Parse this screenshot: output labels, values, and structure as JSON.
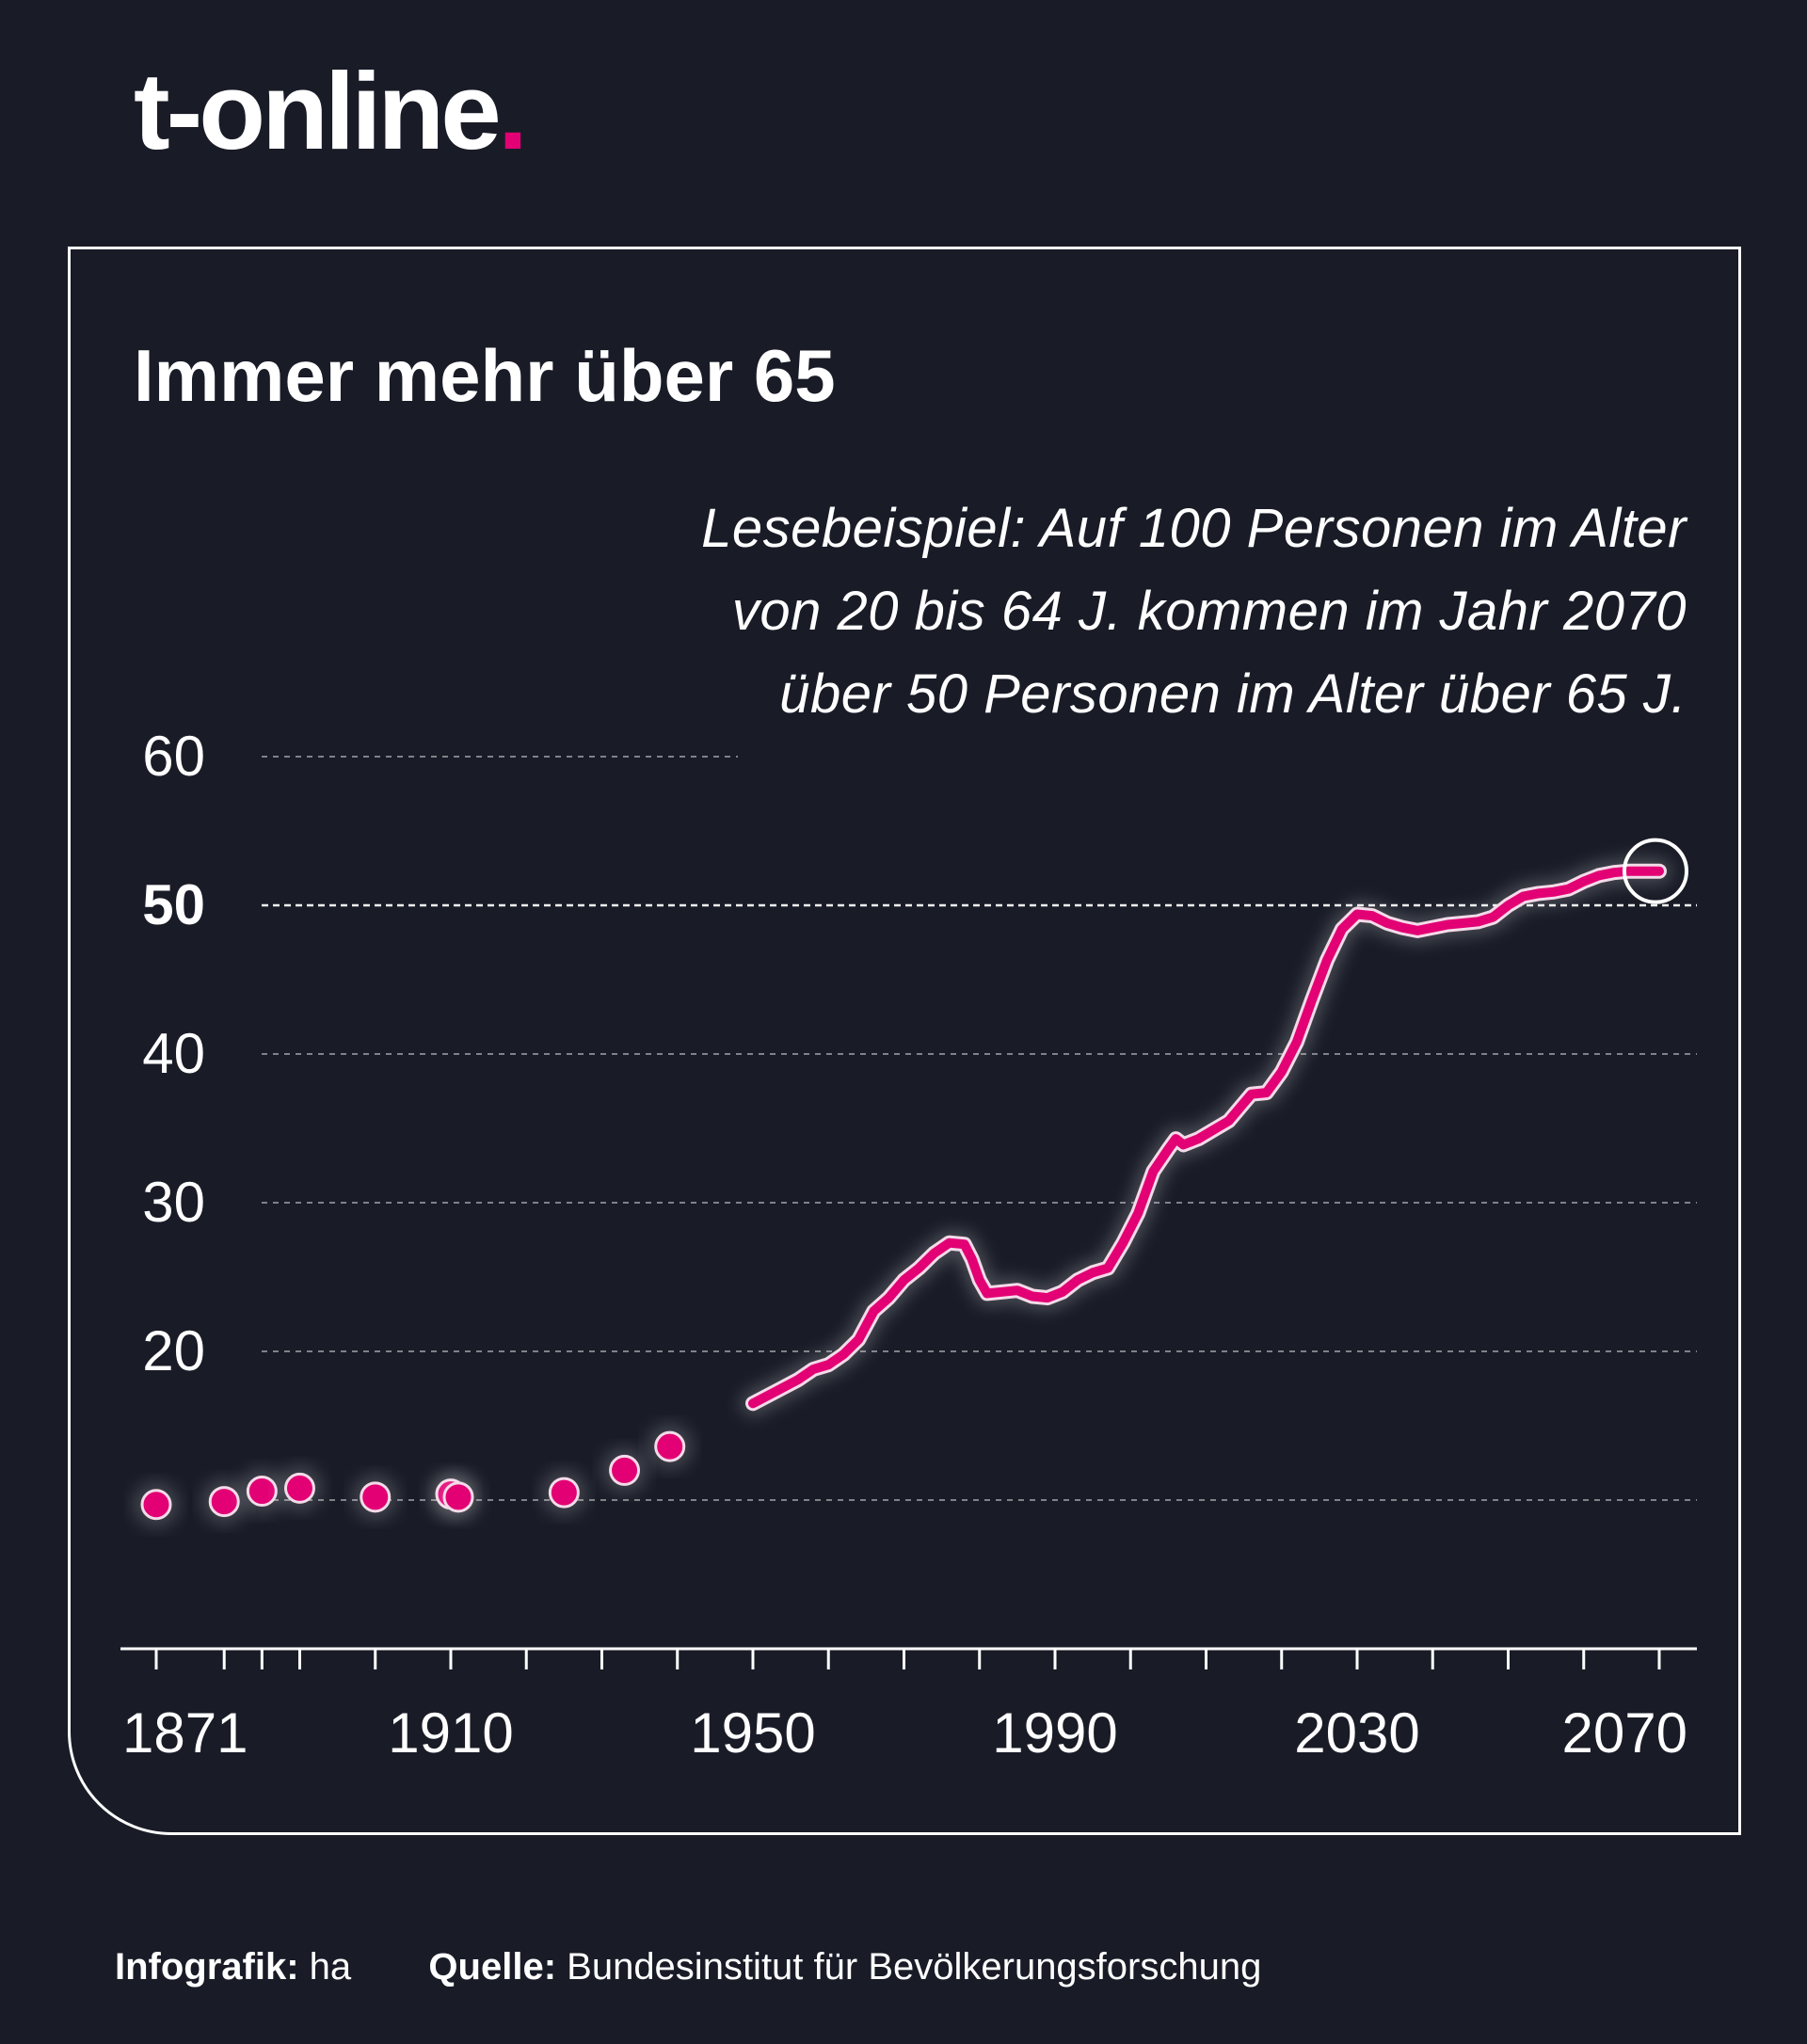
{
  "brand": {
    "name": "t-online",
    "dot": ".",
    "accent": "#e20074"
  },
  "chart_data": {
    "type": "line",
    "title": "Immer mehr über 65",
    "annotation": [
      "Lesebeispiel: Auf 100 Personen im Alter",
      "von 20 bis 64 J. kommen im Jahr 2070",
      "über 50 Personen im Alter über 65 J."
    ],
    "ylim": [
      0,
      60
    ],
    "y_ticks": [
      {
        "value": 60,
        "label": "60",
        "bold": false
      },
      {
        "value": 50,
        "label": "50",
        "bold": true
      },
      {
        "value": 40,
        "label": "40",
        "bold": false
      },
      {
        "value": 30,
        "label": "30",
        "bold": false
      },
      {
        "value": 20,
        "label": "20",
        "bold": false
      }
    ],
    "extra_gridline": 10,
    "xlim": [
      1871,
      2070
    ],
    "x_ticks": [
      1871,
      1880,
      1885,
      1890,
      1900,
      1910,
      1920,
      1930,
      1940,
      1950,
      1960,
      1970,
      1980,
      1990,
      2000,
      2010,
      2020,
      2030,
      2040,
      2050,
      2060,
      2070
    ],
    "x_labels": [
      {
        "value": 1871,
        "label": "1871"
      },
      {
        "value": 1910,
        "label": "1910"
      },
      {
        "value": 1950,
        "label": "1950"
      },
      {
        "value": 1990,
        "label": "1990"
      },
      {
        "value": 2030,
        "label": "2030"
      },
      {
        "value": 2070,
        "label": "2070"
      }
    ],
    "points": [
      {
        "x": 1871,
        "y": 9.7
      },
      {
        "x": 1880,
        "y": 9.9
      },
      {
        "x": 1885,
        "y": 10.6
      },
      {
        "x": 1890,
        "y": 10.8
      },
      {
        "x": 1900,
        "y": 10.2
      },
      {
        "x": 1910,
        "y": 10.4
      },
      {
        "x": 1911,
        "y": 10.2
      },
      {
        "x": 1925,
        "y": 10.5
      },
      {
        "x": 1933,
        "y": 12.0
      },
      {
        "x": 1939,
        "y": 13.6
      }
    ],
    "line": [
      {
        "x": 1950,
        "y": 16.5
      },
      {
        "x": 1953,
        "y": 17.3
      },
      {
        "x": 1956,
        "y": 18.1
      },
      {
        "x": 1958,
        "y": 18.8
      },
      {
        "x": 1960,
        "y": 19.1
      },
      {
        "x": 1962,
        "y": 19.8
      },
      {
        "x": 1964,
        "y": 20.8
      },
      {
        "x": 1966,
        "y": 22.7
      },
      {
        "x": 1968,
        "y": 23.6
      },
      {
        "x": 1970,
        "y": 24.8
      },
      {
        "x": 1972,
        "y": 25.6
      },
      {
        "x": 1974,
        "y": 26.6
      },
      {
        "x": 1976,
        "y": 27.3
      },
      {
        "x": 1978,
        "y": 27.2
      },
      {
        "x": 1979,
        "y": 26.2
      },
      {
        "x": 1980,
        "y": 24.8
      },
      {
        "x": 1981,
        "y": 23.9
      },
      {
        "x": 1983,
        "y": 24.0
      },
      {
        "x": 1985,
        "y": 24.1
      },
      {
        "x": 1987,
        "y": 23.7
      },
      {
        "x": 1989,
        "y": 23.6
      },
      {
        "x": 1991,
        "y": 24.0
      },
      {
        "x": 1993,
        "y": 24.8
      },
      {
        "x": 1995,
        "y": 25.3
      },
      {
        "x": 1997,
        "y": 25.6
      },
      {
        "x": 1999,
        "y": 27.3
      },
      {
        "x": 2001,
        "y": 29.3
      },
      {
        "x": 2003,
        "y": 32.1
      },
      {
        "x": 2005,
        "y": 33.6
      },
      {
        "x": 2006,
        "y": 34.3
      },
      {
        "x": 2007,
        "y": 33.9
      },
      {
        "x": 2009,
        "y": 34.3
      },
      {
        "x": 2011,
        "y": 34.9
      },
      {
        "x": 2013,
        "y": 35.5
      },
      {
        "x": 2015,
        "y": 36.7
      },
      {
        "x": 2016,
        "y": 37.3
      },
      {
        "x": 2018,
        "y": 37.4
      },
      {
        "x": 2020,
        "y": 38.8
      },
      {
        "x": 2022,
        "y": 40.8
      },
      {
        "x": 2024,
        "y": 43.6
      },
      {
        "x": 2026,
        "y": 46.3
      },
      {
        "x": 2028,
        "y": 48.4
      },
      {
        "x": 2030,
        "y": 49.4
      },
      {
        "x": 2032,
        "y": 49.3
      },
      {
        "x": 2034,
        "y": 48.8
      },
      {
        "x": 2036,
        "y": 48.5
      },
      {
        "x": 2038,
        "y": 48.3
      },
      {
        "x": 2040,
        "y": 48.5
      },
      {
        "x": 2042,
        "y": 48.7
      },
      {
        "x": 2044,
        "y": 48.8
      },
      {
        "x": 2046,
        "y": 48.9
      },
      {
        "x": 2048,
        "y": 49.2
      },
      {
        "x": 2050,
        "y": 50.0
      },
      {
        "x": 2052,
        "y": 50.6
      },
      {
        "x": 2054,
        "y": 50.8
      },
      {
        "x": 2056,
        "y": 50.9
      },
      {
        "x": 2058,
        "y": 51.1
      },
      {
        "x": 2060,
        "y": 51.6
      },
      {
        "x": 2062,
        "y": 52.0
      },
      {
        "x": 2064,
        "y": 52.2
      },
      {
        "x": 2066,
        "y": 52.3
      },
      {
        "x": 2068,
        "y": 52.3
      },
      {
        "x": 2070,
        "y": 52.3
      }
    ],
    "highlight": {
      "x": 2070,
      "y": 52.3
    },
    "colors": {
      "series": "#e20074",
      "grid": "#ffffff",
      "background": "#191c27"
    }
  },
  "footer": {
    "credit_label": "Infografik:",
    "credit_value": "ha",
    "source_label": "Quelle:",
    "source_value": "Bundesinstitut für Bevölkerungsforschung"
  }
}
